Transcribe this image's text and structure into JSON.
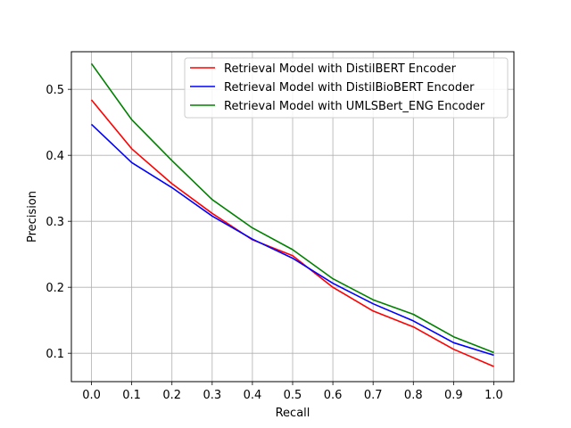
{
  "chart_data": {
    "type": "line",
    "title": "",
    "xlabel": "Recall",
    "ylabel": "Precision",
    "xlim": [
      -0.05,
      1.05
    ],
    "ylim": [
      0.057,
      0.557
    ],
    "xticks": [
      "0.0",
      "0.1",
      "0.2",
      "0.3",
      "0.4",
      "0.5",
      "0.6",
      "0.7",
      "0.8",
      "0.9",
      "1.0"
    ],
    "yticks": [
      "0.1",
      "0.2",
      "0.3",
      "0.4",
      "0.5"
    ],
    "grid": true,
    "legend_position": "top-right",
    "x": [
      0.0,
      0.1,
      0.2,
      0.3,
      0.4,
      0.5,
      0.6,
      0.7,
      0.8,
      0.9,
      1.0
    ],
    "series": [
      {
        "name": "Retrieval Model with DistilBERT Encoder",
        "color": "#ff0000",
        "values": [
          0.484,
          0.41,
          0.357,
          0.312,
          0.272,
          0.248,
          0.2,
          0.164,
          0.14,
          0.106,
          0.08
        ]
      },
      {
        "name": "Retrieval Model with DistilBioBERT Encoder",
        "color": "#0000ff",
        "values": [
          0.447,
          0.389,
          0.351,
          0.308,
          0.273,
          0.244,
          0.206,
          0.175,
          0.149,
          0.116,
          0.097
        ]
      },
      {
        "name": "Retrieval Model with UMLSBert_ENG Encoder",
        "color": "#008000",
        "values": [
          0.539,
          0.454,
          0.392,
          0.333,
          0.29,
          0.257,
          0.213,
          0.181,
          0.159,
          0.125,
          0.101
        ]
      }
    ]
  }
}
